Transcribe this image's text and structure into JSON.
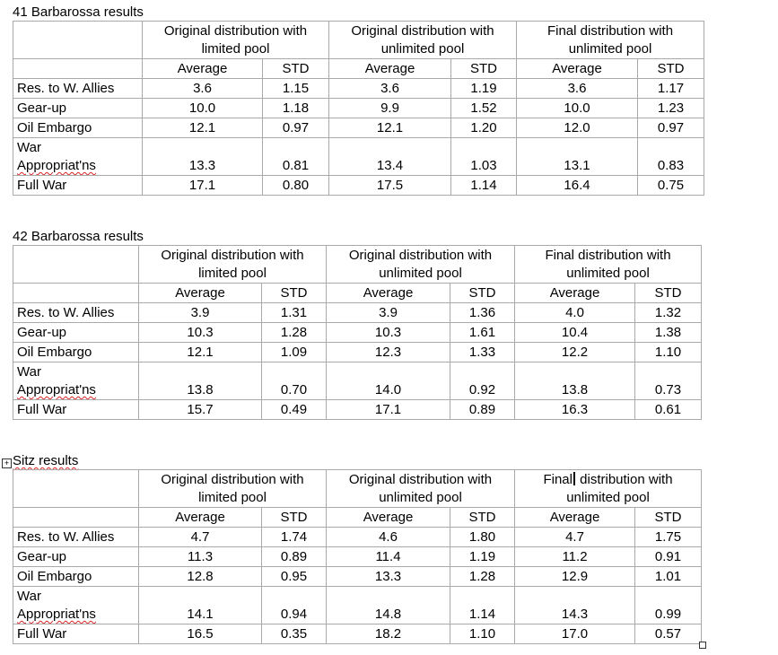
{
  "tables": [
    {
      "caption": "41 Barbarossa results",
      "headers": [
        "Original distribution with limited pool",
        "Original distribution with unlimited pool",
        "Final distribution with unlimited pool"
      ],
      "subheaders": [
        "Average",
        "STD"
      ],
      "rows": [
        {
          "label": "Res. to W. Allies",
          "values": [
            "3.6",
            "1.15",
            "3.6",
            "1.19",
            "3.6",
            "1.17"
          ]
        },
        {
          "label": "Gear-up",
          "values": [
            "10.0",
            "1.18",
            "9.9",
            "1.52",
            "10.0",
            "1.23"
          ]
        },
        {
          "label": "Oil Embargo",
          "values": [
            "12.1",
            "0.97",
            "12.1",
            "1.20",
            "12.0",
            "0.97"
          ]
        },
        {
          "label": "War Appropriat'ns",
          "label_line1": "War",
          "label_line2": "Appropriat'ns",
          "values": [
            "13.3",
            "0.81",
            "13.4",
            "1.03",
            "13.1",
            "0.83"
          ]
        },
        {
          "label": "Full War",
          "values": [
            "17.1",
            "0.80",
            "17.5",
            "1.14",
            "16.4",
            "0.75"
          ]
        }
      ]
    },
    {
      "caption": "42 Barbarossa results",
      "headers": [
        "Original distribution with limited pool",
        "Original distribution with unlimited pool",
        "Final distribution with unlimited pool"
      ],
      "subheaders": [
        "Average",
        "STD"
      ],
      "rows": [
        {
          "label": "Res. to W. Allies",
          "values": [
            "3.9",
            "1.31",
            "3.9",
            "1.36",
            "4.0",
            "1.32"
          ]
        },
        {
          "label": "Gear-up",
          "values": [
            "10.3",
            "1.28",
            "10.3",
            "1.61",
            "10.4",
            "1.38"
          ]
        },
        {
          "label": "Oil Embargo",
          "values": [
            "12.1",
            "1.09",
            "12.3",
            "1.33",
            "12.2",
            "1.10"
          ]
        },
        {
          "label": "War Appropriat'ns",
          "label_line1": "War",
          "label_line2": "Appropriat'ns",
          "values": [
            "13.8",
            "0.70",
            "14.0",
            "0.92",
            "13.8",
            "0.73"
          ]
        },
        {
          "label": "Full War",
          "values": [
            "15.7",
            "0.49",
            "17.1",
            "0.89",
            "16.3",
            "0.61"
          ]
        }
      ]
    },
    {
      "caption": "Sitz results",
      "headers": [
        "Original distribution with limited pool",
        "Original distribution with unlimited pool",
        "Final distribution with unlimited pool"
      ],
      "subheaders": [
        "Average",
        "STD"
      ],
      "rows": [
        {
          "label": "Res. to W. Allies",
          "values": [
            "4.7",
            "1.74",
            "4.6",
            "1.80",
            "4.7",
            "1.75"
          ]
        },
        {
          "label": "Gear-up",
          "values": [
            "11.3",
            "0.89",
            "11.4",
            "1.19",
            "11.2",
            "0.91"
          ]
        },
        {
          "label": "Oil Embargo",
          "values": [
            "12.8",
            "0.95",
            "13.3",
            "1.28",
            "12.9",
            "1.01"
          ]
        },
        {
          "label": "War Appropriat'ns",
          "label_line1": "War",
          "label_line2": "Appropriat'ns",
          "values": [
            "14.1",
            "0.94",
            "14.8",
            "1.14",
            "14.3",
            "0.99"
          ]
        },
        {
          "label": "Full War",
          "values": [
            "16.5",
            "0.35",
            "18.2",
            "1.10",
            "17.0",
            "0.57"
          ]
        }
      ]
    }
  ],
  "icons": {
    "move_handle": "table-move-handle-icon",
    "resize_handle": "table-resize-handle-icon"
  },
  "colors": {
    "border": "#a9a9a9",
    "spellcheck": "#d22"
  }
}
